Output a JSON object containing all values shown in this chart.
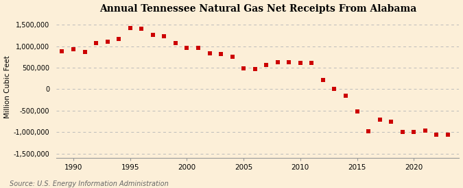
{
  "title": "Annual Tennessee Natural Gas Net Receipts From Alabama",
  "ylabel": "Million Cubic Feet",
  "source": "Source: U.S. Energy Information Administration",
  "background_color": "#fcefd8",
  "grid_color": "#bbbbbb",
  "marker_color": "#cc0000",
  "xlim": [
    1988.5,
    2024
  ],
  "ylim": [
    -1600000,
    1700000
  ],
  "yticks": [
    -1500000,
    -1000000,
    -500000,
    0,
    500000,
    1000000,
    1500000
  ],
  "ytick_labels": [
    "-1,500,000",
    "-1,000,000",
    "-500,000",
    "0",
    "500,000",
    "1,000,000",
    "1,500,000"
  ],
  "xticks": [
    1990,
    1995,
    2000,
    2005,
    2010,
    2015,
    2020
  ],
  "years": [
    1989,
    1990,
    1991,
    1992,
    1993,
    1994,
    1995,
    1996,
    1997,
    1998,
    1999,
    2000,
    2001,
    2002,
    2003,
    2004,
    2005,
    2006,
    2007,
    2008,
    2009,
    2010,
    2011,
    2012,
    2013,
    2014,
    2015,
    2016,
    2017,
    2018,
    2019,
    2020,
    2021,
    2022,
    2023
  ],
  "values": [
    880000,
    930000,
    860000,
    1080000,
    1100000,
    1170000,
    1420000,
    1400000,
    1260000,
    1230000,
    1080000,
    960000,
    960000,
    830000,
    820000,
    750000,
    480000,
    470000,
    570000,
    630000,
    620000,
    610000,
    610000,
    220000,
    15000,
    -150000,
    -510000,
    -980000,
    -700000,
    -760000,
    -1000000,
    -1000000,
    -960000,
    -1050000,
    -1050000
  ]
}
